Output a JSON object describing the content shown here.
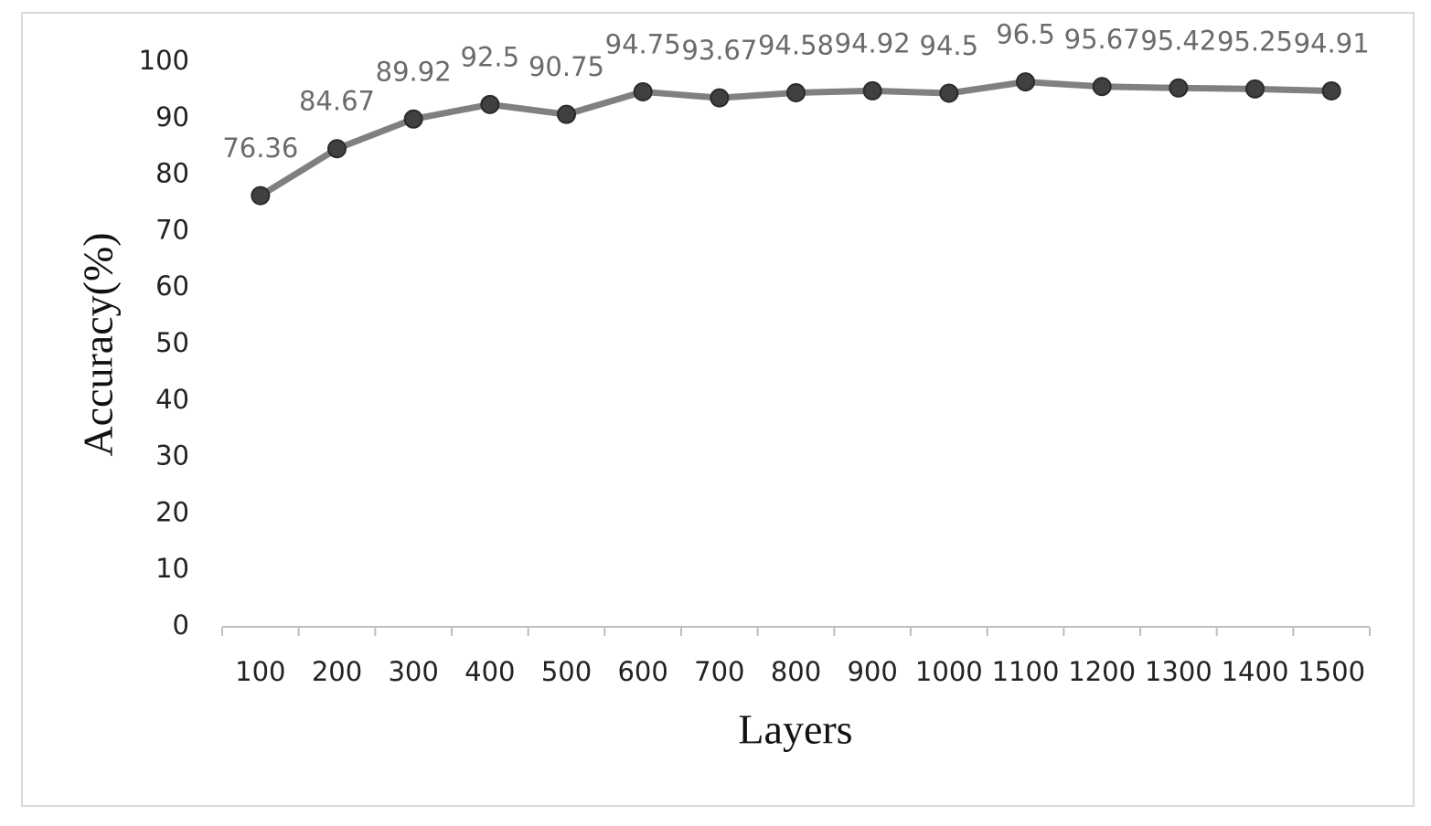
{
  "chart_data": {
    "type": "line",
    "x_label": "Layers",
    "y_label": "Accuracy(%)",
    "categories": [
      "100",
      "200",
      "300",
      "400",
      "500",
      "600",
      "700",
      "800",
      "900",
      "1000",
      "1100",
      "1200",
      "1300",
      "1400",
      "1500"
    ],
    "values": [
      76.36,
      84.67,
      89.92,
      92.5,
      90.75,
      94.75,
      93.67,
      94.58,
      94.92,
      94.5,
      96.5,
      95.67,
      95.42,
      95.25,
      94.91
    ],
    "color": "#808080",
    "marker_color": "#404040",
    "ylim": [
      0,
      100
    ],
    "yticks": [
      0,
      10,
      20,
      30,
      40,
      50,
      60,
      70,
      80,
      90,
      100
    ],
    "grid": false
  }
}
